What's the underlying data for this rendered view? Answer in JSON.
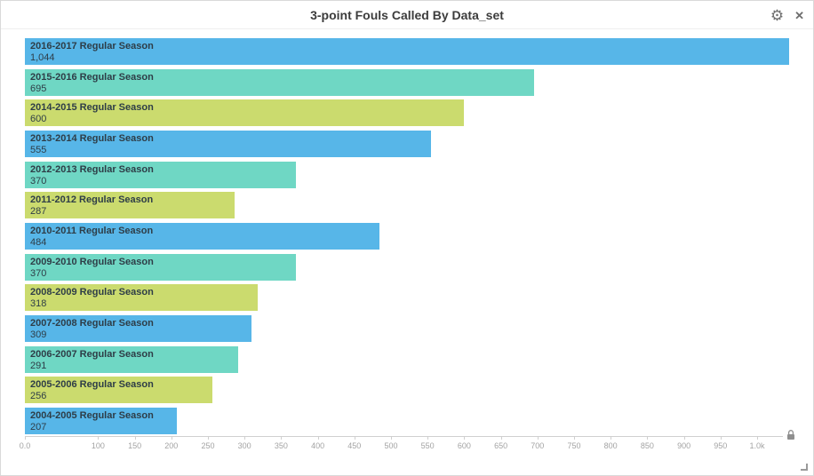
{
  "header": {
    "title": "3-point Fouls Called By Data_set",
    "settings_icon": "⚙",
    "close_icon": "✕"
  },
  "chart_data": {
    "type": "bar",
    "orientation": "horizontal",
    "title": "3-point Fouls Called By Data_set",
    "categories": [
      "2016-2017 Regular Season",
      "2015-2016 Regular Season",
      "2014-2015 Regular Season",
      "2013-2014 Regular Season",
      "2012-2013 Regular Season",
      "2011-2012 Regular Season",
      "2010-2011 Regular Season",
      "2009-2010 Regular Season",
      "2008-2009 Regular Season",
      "2007-2008 Regular Season",
      "2006-2007 Regular Season",
      "2005-2006 Regular Season",
      "2004-2005 Regular Season"
    ],
    "values": [
      1044,
      695,
      600,
      555,
      370,
      287,
      484,
      370,
      318,
      309,
      291,
      256,
      207
    ],
    "value_labels": [
      "1,044",
      "695",
      "600",
      "555",
      "370",
      "287",
      "484",
      "370",
      "318",
      "309",
      "291",
      "256",
      "207"
    ],
    "color_cycle": [
      "#57b6e8",
      "#6fd7c4",
      "#cbdb6e"
    ],
    "xlim": [
      0,
      1075
    ],
    "grid": false,
    "legend": false,
    "x_axis_ticks": [
      {
        "value": 0,
        "label": "0.0"
      },
      {
        "value": 100,
        "label": "100"
      },
      {
        "value": 150,
        "label": "150"
      },
      {
        "value": 200,
        "label": "200"
      },
      {
        "value": 250,
        "label": "250"
      },
      {
        "value": 300,
        "label": "300"
      },
      {
        "value": 350,
        "label": "350"
      },
      {
        "value": 400,
        "label": "400"
      },
      {
        "value": 450,
        "label": "450"
      },
      {
        "value": 500,
        "label": "500"
      },
      {
        "value": 550,
        "label": "550"
      },
      {
        "value": 600,
        "label": "600"
      },
      {
        "value": 650,
        "label": "650"
      },
      {
        "value": 700,
        "label": "700"
      },
      {
        "value": 750,
        "label": "750"
      },
      {
        "value": 800,
        "label": "800"
      },
      {
        "value": 850,
        "label": "850"
      },
      {
        "value": 900,
        "label": "900"
      },
      {
        "value": 950,
        "label": "950"
      },
      {
        "value": 1000,
        "label": "1.0k"
      }
    ]
  }
}
